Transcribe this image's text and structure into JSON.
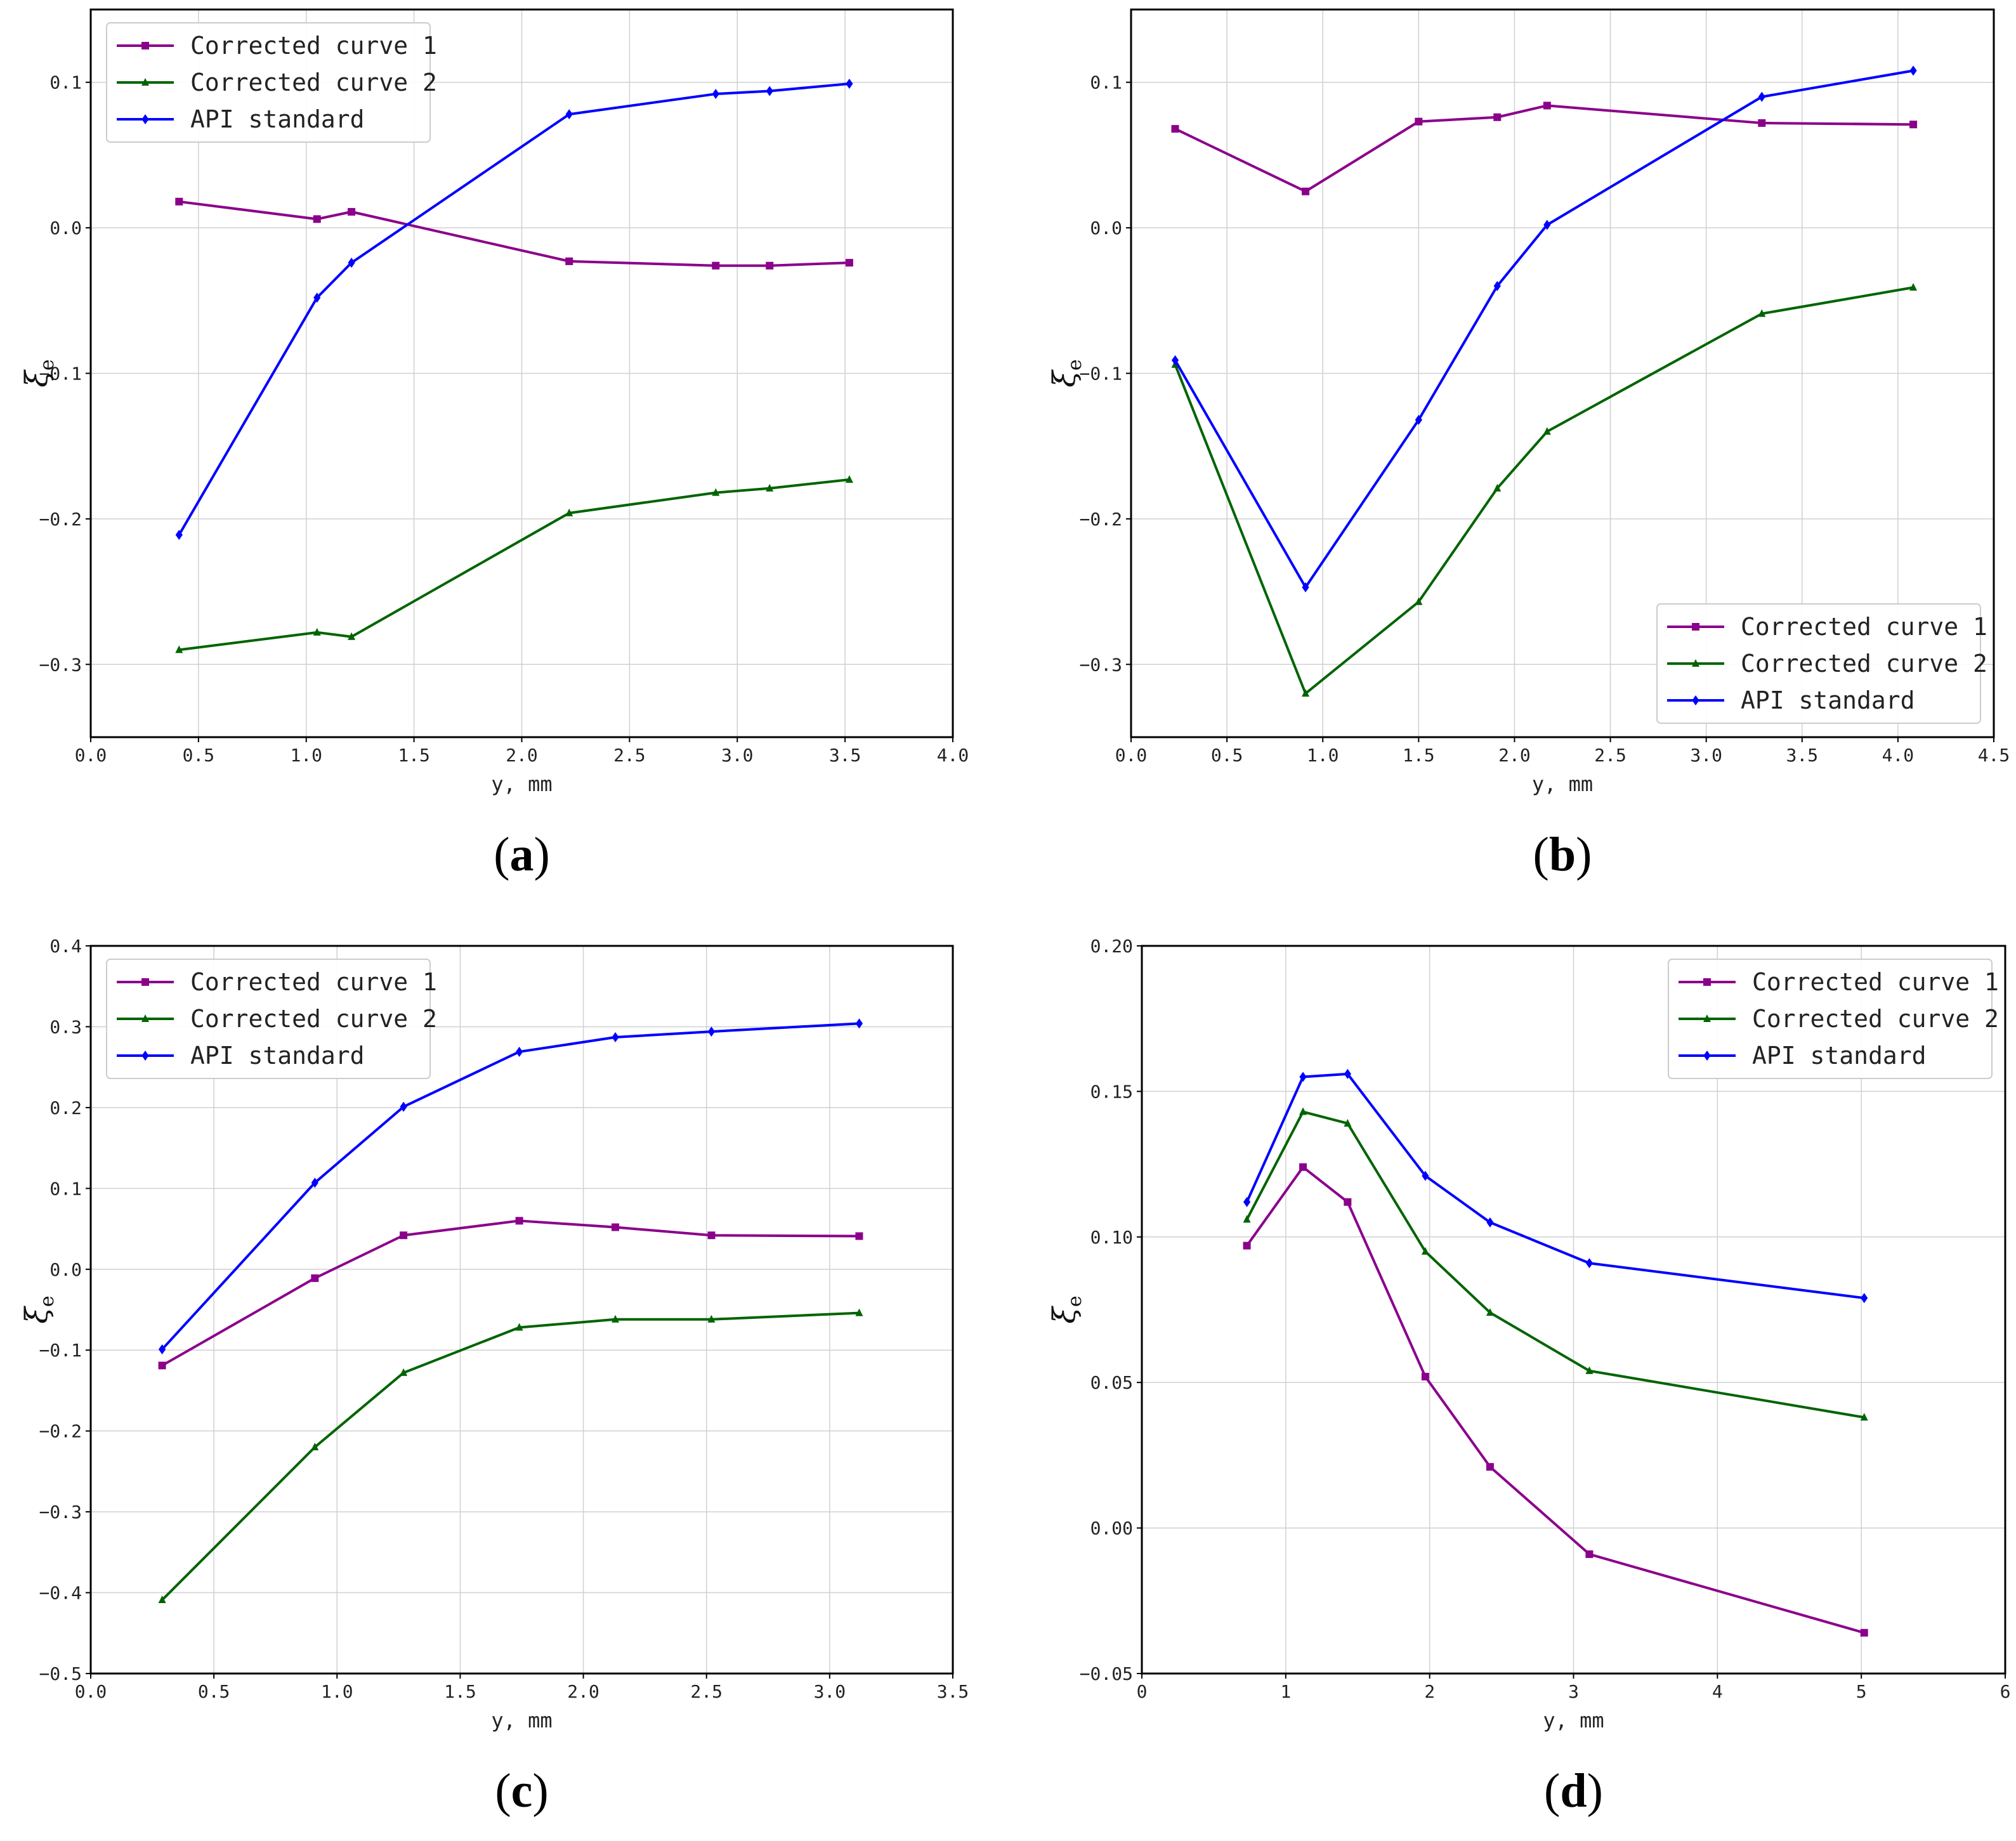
{
  "colors": {
    "series1": "#8B008B",
    "series2": "#006400",
    "series3": "#0000FF",
    "grid": "#d0d0d0",
    "axis": "#000000"
  },
  "chart_data": [
    {
      "type": "line",
      "panel_label": "a",
      "xlabel": "y, mm",
      "ylabel": "ξ",
      "ylabel_sub": "e",
      "xlim": [
        0.0,
        4.0
      ],
      "ylim": [
        -0.35,
        0.15
      ],
      "xticks": [
        0.0,
        0.5,
        1.0,
        1.5,
        2.0,
        2.5,
        3.0,
        3.5,
        4.0
      ],
      "xtick_labels": [
        "0.0",
        "0.5",
        "1.0",
        "1.5",
        "2.0",
        "2.5",
        "3.0",
        "3.5",
        "4.0"
      ],
      "yticks": [
        -0.3,
        -0.2,
        -0.1,
        0.0,
        0.1
      ],
      "ytick_labels": [
        "−0.3",
        "−0.2",
        "−0.1",
        "0.0",
        "0.1"
      ],
      "legend_position": "top-left",
      "series": [
        {
          "name": "Corrected curve 1",
          "marker": "square",
          "x": [
            0.41,
            1.05,
            1.21,
            2.22,
            2.9,
            3.15,
            3.52
          ],
          "y": [
            0.018,
            0.006,
            0.011,
            -0.023,
            -0.026,
            -0.026,
            -0.024
          ]
        },
        {
          "name": "Corrected curve 2",
          "marker": "triangle",
          "x": [
            0.41,
            1.05,
            1.21,
            2.22,
            2.9,
            3.15,
            3.52
          ],
          "y": [
            -0.29,
            -0.278,
            -0.281,
            -0.196,
            -0.182,
            -0.179,
            -0.173
          ]
        },
        {
          "name": "API standard",
          "marker": "diamond",
          "x": [
            0.41,
            1.05,
            1.21,
            2.22,
            2.9,
            3.15,
            3.52
          ],
          "y": [
            -0.211,
            -0.048,
            -0.024,
            0.078,
            0.092,
            0.094,
            0.099
          ]
        }
      ]
    },
    {
      "type": "line",
      "panel_label": "b",
      "xlabel": "y, mm",
      "ylabel": "ξ",
      "ylabel_sub": "e",
      "xlim": [
        0.0,
        4.5
      ],
      "ylim": [
        -0.35,
        0.15
      ],
      "xticks": [
        0.0,
        0.5,
        1.0,
        1.5,
        2.0,
        2.5,
        3.0,
        3.5,
        4.0,
        4.5
      ],
      "xtick_labels": [
        "0.0",
        "0.5",
        "1.0",
        "1.5",
        "2.0",
        "2.5",
        "3.0",
        "3.5",
        "4.0",
        "4.5"
      ],
      "yticks": [
        -0.3,
        -0.2,
        -0.1,
        0.0,
        0.1
      ],
      "ytick_labels": [
        "−0.3",
        "−0.2",
        "−0.1",
        "0.0",
        "0.1"
      ],
      "legend_position": "bottom-right",
      "series": [
        {
          "name": "Corrected curve 1",
          "marker": "square",
          "x": [
            0.23,
            0.91,
            1.5,
            1.91,
            2.17,
            3.29,
            4.08
          ],
          "y": [
            0.068,
            0.025,
            0.073,
            0.076,
            0.084,
            0.072,
            0.071
          ]
        },
        {
          "name": "Corrected curve 2",
          "marker": "triangle",
          "x": [
            0.23,
            0.91,
            1.5,
            1.91,
            2.17,
            3.29,
            4.08
          ],
          "y": [
            -0.094,
            -0.32,
            -0.257,
            -0.179,
            -0.14,
            -0.059,
            -0.041
          ]
        },
        {
          "name": "API standard",
          "marker": "diamond",
          "x": [
            0.23,
            0.91,
            1.5,
            1.91,
            2.17,
            3.29,
            4.08
          ],
          "y": [
            -0.091,
            -0.247,
            -0.132,
            -0.04,
            0.002,
            0.09,
            0.108
          ]
        }
      ]
    },
    {
      "type": "line",
      "panel_label": "c",
      "xlabel": "y, mm",
      "ylabel": "ξ",
      "ylabel_sub": "e",
      "xlim": [
        0.0,
        3.5
      ],
      "ylim": [
        -0.5,
        0.4
      ],
      "xticks": [
        0.0,
        0.5,
        1.0,
        1.5,
        2.0,
        2.5,
        3.0,
        3.5
      ],
      "xtick_labels": [
        "0.0",
        "0.5",
        "1.0",
        "1.5",
        "2.0",
        "2.5",
        "3.0",
        "3.5"
      ],
      "yticks": [
        -0.5,
        -0.4,
        -0.3,
        -0.2,
        -0.1,
        0.0,
        0.1,
        0.2,
        0.3,
        0.4
      ],
      "ytick_labels": [
        "−0.5",
        "−0.4",
        "−0.3",
        "−0.2",
        "−0.1",
        "0.0",
        "0.1",
        "0.2",
        "0.3",
        "0.4"
      ],
      "legend_position": "top-left",
      "series": [
        {
          "name": "Corrected curve 1",
          "marker": "square",
          "x": [
            0.29,
            0.91,
            1.27,
            1.74,
            2.13,
            2.52,
            3.12
          ],
          "y": [
            -0.119,
            -0.011,
            0.042,
            0.06,
            0.052,
            0.042,
            0.041
          ]
        },
        {
          "name": "Corrected curve 2",
          "marker": "triangle",
          "x": [
            0.29,
            0.91,
            1.27,
            1.74,
            2.13,
            2.52,
            3.12
          ],
          "y": [
            -0.409,
            -0.22,
            -0.128,
            -0.072,
            -0.062,
            -0.062,
            -0.054
          ]
        },
        {
          "name": "API standard",
          "marker": "diamond",
          "x": [
            0.29,
            0.91,
            1.27,
            1.74,
            2.13,
            2.52,
            3.12
          ],
          "y": [
            -0.099,
            0.107,
            0.201,
            0.269,
            0.287,
            0.294,
            0.304
          ]
        }
      ]
    },
    {
      "type": "line",
      "panel_label": "d",
      "xlabel": "y, mm",
      "ylabel": "ξ",
      "ylabel_sub": "e",
      "xlim": [
        0,
        6
      ],
      "ylim": [
        -0.05,
        0.2
      ],
      "xticks": [
        0,
        1,
        2,
        3,
        4,
        5,
        6
      ],
      "xtick_labels": [
        "0",
        "1",
        "2",
        "3",
        "4",
        "5",
        "6"
      ],
      "yticks": [
        -0.05,
        0.0,
        0.05,
        0.1,
        0.15,
        0.2
      ],
      "ytick_labels": [
        "−0.05",
        "0.00",
        "0.05",
        "0.10",
        "0.15",
        "0.20"
      ],
      "legend_position": "top-right",
      "series": [
        {
          "name": "Corrected curve 1",
          "marker": "square",
          "x": [
            0.73,
            1.12,
            1.43,
            1.97,
            2.42,
            3.11,
            5.02
          ],
          "y": [
            0.097,
            0.124,
            0.112,
            0.052,
            0.021,
            -0.009,
            -0.036
          ]
        },
        {
          "name": "Corrected curve 2",
          "marker": "triangle",
          "x": [
            0.73,
            1.12,
            1.43,
            1.97,
            2.42,
            3.11,
            5.02
          ],
          "y": [
            0.106,
            0.143,
            0.139,
            0.095,
            0.074,
            0.054,
            0.038
          ]
        },
        {
          "name": "API standard",
          "marker": "diamond",
          "x": [
            0.73,
            1.12,
            1.43,
            1.97,
            2.42,
            3.11,
            5.02
          ],
          "y": [
            0.112,
            0.155,
            0.156,
            0.121,
            0.105,
            0.091,
            0.079
          ]
        }
      ]
    }
  ]
}
